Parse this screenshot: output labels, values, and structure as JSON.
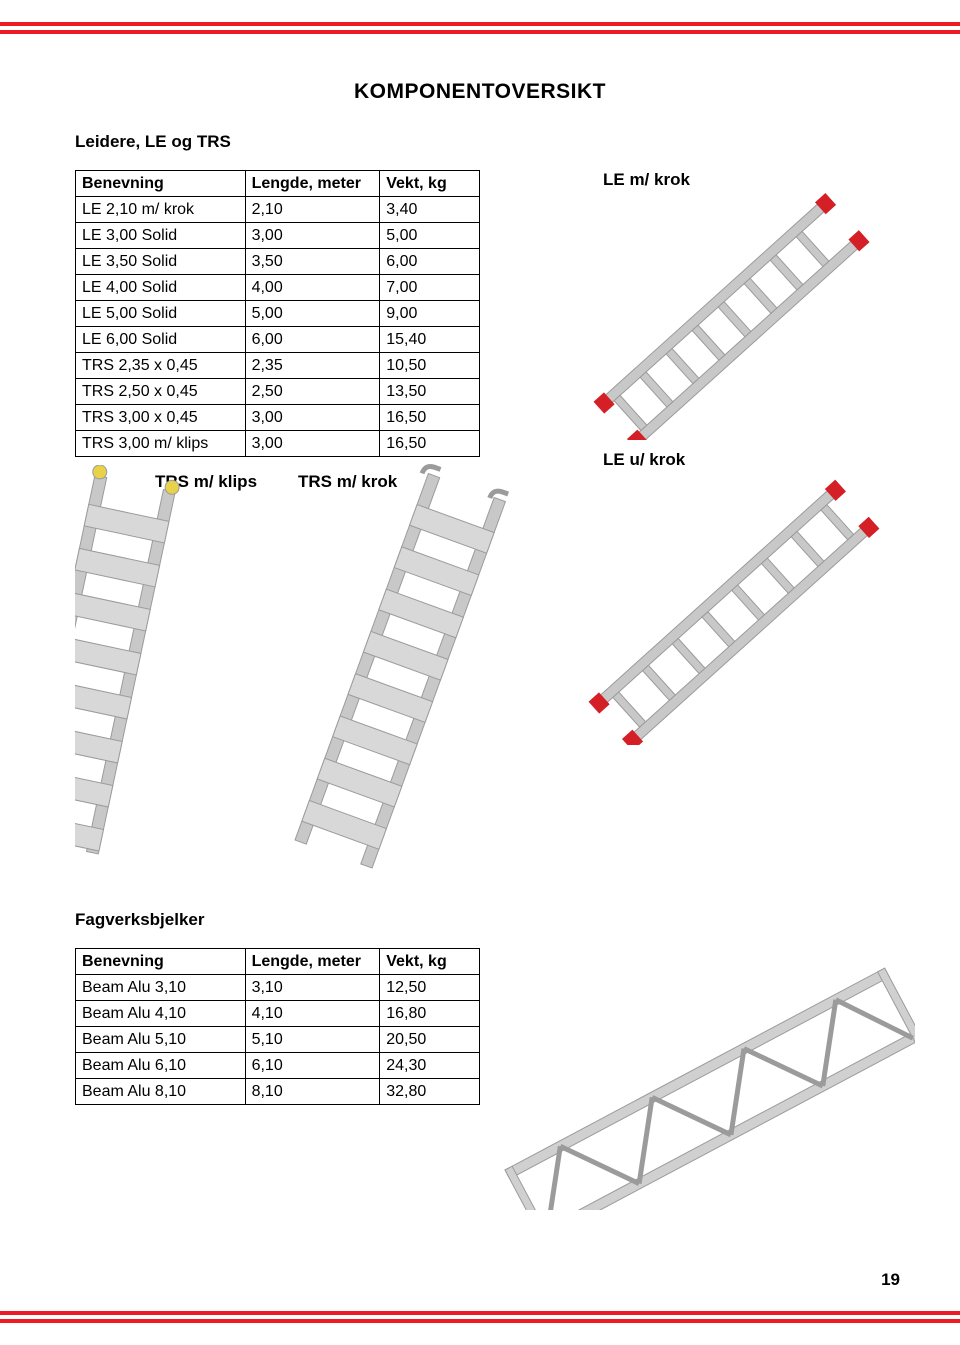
{
  "page": {
    "title": "KOMPONENTOVERSIKT",
    "number": "19"
  },
  "colors": {
    "red_rule": "#ed1c24",
    "ladder_gray": "#c8c8c8",
    "ladder_gray_dark": "#9b9b9b",
    "red_end": "#d41f26"
  },
  "section1": {
    "label": "Leidere, LE og TRS",
    "headers": [
      "Benevning",
      "Lengde, meter",
      "Vekt, kg"
    ],
    "rows": [
      [
        "LE 2,10 m/ krok",
        "2,10",
        "3,40"
      ],
      [
        "LE 3,00 Solid",
        "3,00",
        "5,00"
      ],
      [
        "LE 3,50 Solid",
        "3,50",
        "6,00"
      ],
      [
        "LE 4,00 Solid",
        "4,00",
        "7,00"
      ],
      [
        "LE 5,00 Solid",
        "5,00",
        "9,00"
      ],
      [
        "LE 6,00 Solid",
        "6,00",
        "15,40"
      ],
      [
        "TRS 2,35 x 0,45",
        "2,35",
        "10,50"
      ],
      [
        "TRS 2,50 x 0,45",
        "2,50",
        "13,50"
      ],
      [
        "TRS 3,00 x 0,45",
        "3,00",
        "16,50"
      ],
      [
        "TRS 3,00 m/ klips",
        "3,00",
        "16,50"
      ]
    ],
    "fig_labels": {
      "le_m_krok": "LE m/ krok",
      "le_u_krok": "LE u/ krok",
      "trs_m_klips": "TRS m/ klips",
      "trs_m_krok": "TRS m/ krok"
    }
  },
  "section2": {
    "label": "Fagverksbjelker",
    "headers": [
      "Benevning",
      "Lengde, meter",
      "Vekt, kg"
    ],
    "rows": [
      [
        "Beam Alu 3,10",
        "3,10",
        "12,50"
      ],
      [
        "Beam Alu 4,10",
        "4,10",
        "16,80"
      ],
      [
        "Beam Alu 5,10",
        "5,10",
        "20,50"
      ],
      [
        "Beam Alu 6,10",
        "6,10",
        "24,30"
      ],
      [
        "Beam Alu 8,10",
        "8,10",
        "32,80"
      ]
    ]
  }
}
